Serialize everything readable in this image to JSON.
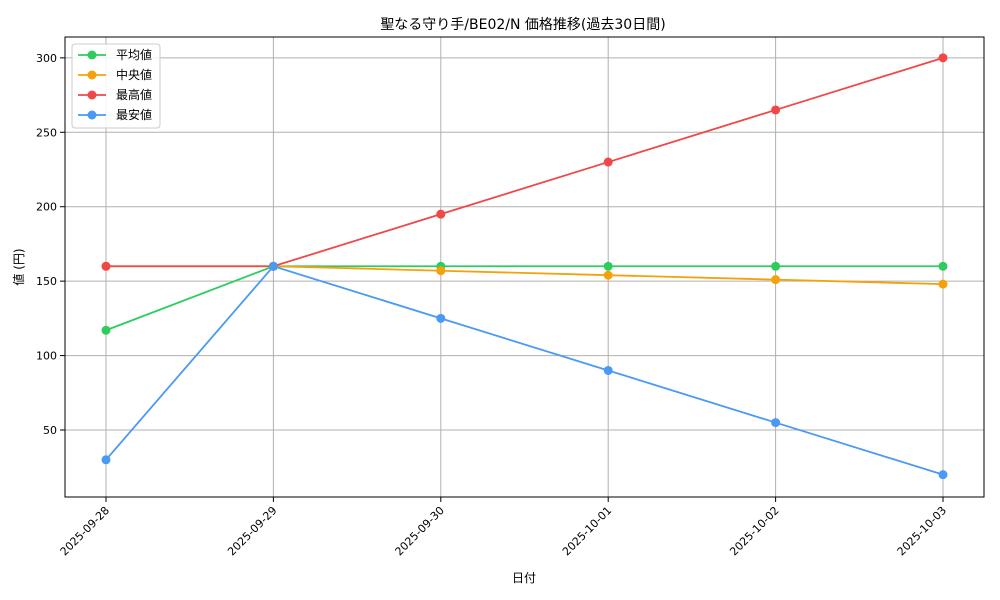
{
  "chart_data": {
    "type": "line",
    "title": "聖なる守り手/BE02/N 価格推移(過去30日間)",
    "xlabel": "日付",
    "ylabel": "値 (円)",
    "categories": [
      "2025-09-28",
      "2025-09-29",
      "2025-09-30",
      "2025-10-01",
      "2025-10-02",
      "2025-10-03"
    ],
    "yticks": [
      50,
      100,
      150,
      200,
      250,
      300
    ],
    "ylim": [
      5,
      314
    ],
    "grid": true,
    "legend_position": "top-left",
    "series": [
      {
        "name": "平均値",
        "color": "#2ecc5c",
        "values": [
          117,
          160,
          160,
          160,
          160,
          160
        ]
      },
      {
        "name": "中央値",
        "color": "#f5a20a",
        "values": [
          160,
          160,
          157,
          154,
          151,
          148
        ]
      },
      {
        "name": "最高値",
        "color": "#f04848",
        "values": [
          160,
          160,
          195,
          230,
          265,
          300
        ]
      },
      {
        "name": "最安値",
        "color": "#4a9af5",
        "values": [
          30,
          160,
          125,
          90,
          55,
          20
        ]
      }
    ]
  }
}
